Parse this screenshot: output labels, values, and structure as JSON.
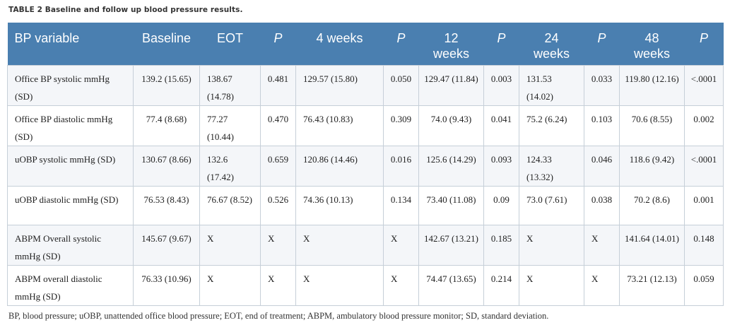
{
  "caption": "TABLE 2 Baseline and follow up blood pressure results.",
  "headers": [
    "BP variable",
    "Baseline",
    "EOT",
    "P",
    "4 weeks",
    "P",
    "12 weeks",
    "P",
    "24 weeks",
    "P",
    "48 weeks",
    "P"
  ],
  "rows": [
    [
      "Office BP systolic mmHg (SD)",
      "139.2 (15.65)",
      "138.67 (14.78)",
      "0.481",
      "129.57 (15.80)",
      "0.050",
      "129.47 (11.84)",
      "0.003",
      "131.53 (14.02)",
      "0.033",
      "119.80 (12.16)",
      "<.0001"
    ],
    [
      "Office BP diastolic mmHg (SD)",
      "77.4 (8.68)",
      "77.27 (10.44)",
      "0.470",
      "76.43 (10.83)",
      "0.309",
      "74.0 (9.43)",
      "0.041",
      "75.2 (6.24)",
      "0.103",
      "70.6 (8.55)",
      "0.002"
    ],
    [
      "uOBP systolic mmHg (SD)",
      "130.67 (8.66)",
      "132.6 (17.42)",
      "0.659",
      "120.86 (14.46)",
      "0.016",
      "125.6 (14.29)",
      "0.093",
      "124.33 (13.32)",
      "0.046",
      "118.6 (9.42)",
      "<.0001"
    ],
    [
      "uOBP diastolic mmHg (SD)",
      "76.53 (8.43)",
      "76.67 (8.52)",
      "0.526",
      "74.36 (10.13)",
      "0.134",
      "73.40 (11.08)",
      "0.09",
      "73.0 (7.61)",
      "0.038",
      "70.2 (8.6)",
      "0.001"
    ],
    [
      "ABPM Overall systolic mmHg (SD)",
      "145.67 (9.67)",
      "X",
      "X",
      "X",
      "X",
      "142.67 (13.21)",
      "0.185",
      "X",
      "X",
      "141.64 (14.01)",
      "0.148"
    ],
    [
      "ABPM overall diastolic mmHg (SD)",
      "76.33 (10.96)",
      "X",
      "X",
      "X",
      "X",
      "74.47 (13.65)",
      "0.214",
      "X",
      "X",
      "73.21 (12.13)",
      "0.059"
    ]
  ],
  "footnote": "BP, blood pressure; uOBP, unattended office blood pressure; EOT, end of treatment; ABPM, ambulatory blood pressure monitor; SD, standard deviation."
}
